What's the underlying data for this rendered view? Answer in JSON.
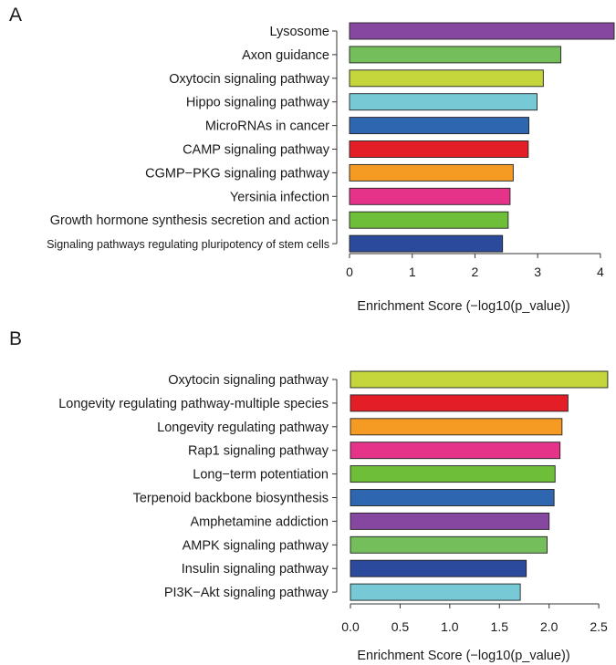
{
  "chart_data": [
    {
      "type": "bar",
      "orientation": "horizontal",
      "panel_label": "A",
      "categories": [
        "Lysosome",
        "Axon guidance",
        "Oxytocin signaling pathway",
        "Hippo signaling pathway",
        "MicroRNAs in cancer",
        "CAMP signaling pathway",
        "CGMP−PKG signaling pathway",
        "Yersinia infection",
        "Growth hormone synthesis secretion and action",
        "Signaling pathways regulating pluripotency of stem cells"
      ],
      "values": [
        4.22,
        3.37,
        3.09,
        2.99,
        2.86,
        2.85,
        2.61,
        2.56,
        2.53,
        2.44
      ],
      "colors": [
        "#8547a0",
        "#74be5c",
        "#c4d63c",
        "#77c9d6",
        "#2e66b0",
        "#e31e26",
        "#f59a23",
        "#e6338a",
        "#6fbe3a",
        "#2c4a9c"
      ],
      "xlabel": "Enrichment Score (−log10(p_value))",
      "ylabel": "",
      "xlim": [
        0,
        4.22
      ],
      "xticks": [
        0,
        1,
        2,
        3,
        4
      ],
      "xtick_labels": [
        "0",
        "1",
        "2",
        "3",
        "4"
      ],
      "grid": false
    },
    {
      "type": "bar",
      "orientation": "horizontal",
      "panel_label": "B",
      "categories": [
        "Oxytocin signaling pathway",
        "Longevity regulating pathway-multiple species",
        "Longevity regulating pathway",
        "Rap1 signaling pathway",
        "Long−term potentiation",
        "Terpenoid backbone biosynthesis",
        "Amphetamine addiction",
        "AMPK signaling pathway",
        "Insulin signaling pathway",
        "PI3K−Akt signaling pathway"
      ],
      "values": [
        2.59,
        2.19,
        2.13,
        2.11,
        2.06,
        2.05,
        2.0,
        1.98,
        1.77,
        1.71
      ],
      "colors": [
        "#c4d63c",
        "#e31e26",
        "#f59a23",
        "#e6338a",
        "#6fbe3a",
        "#2e66b0",
        "#8547a0",
        "#74be5c",
        "#2c4a9c",
        "#77c9d6"
      ],
      "xlabel": "Enrichment Score (−log10(p_value))",
      "ylabel": "",
      "xlim": [
        0,
        2.6
      ],
      "xticks": [
        0,
        0.5,
        1,
        1.5,
        2,
        2.5
      ],
      "xtick_labels": [
        "0.0",
        "0.5",
        "1.0",
        "1.5",
        "2.0",
        "2.5"
      ],
      "grid": false
    }
  ]
}
